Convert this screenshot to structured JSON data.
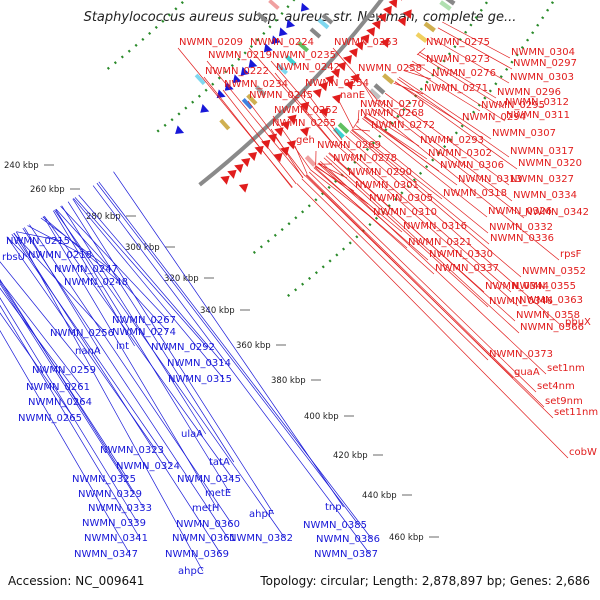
{
  "title": "Staphylococcus aureus subsp. aureus str. Newman, complete ge...",
  "footer": {
    "accession": "Accession: NC_009641",
    "stats": "Topology: circular; Length: 2,878,897 bp; Genes: 2,686"
  },
  "colors": {
    "forward": "#e11d1d",
    "reverse": "#1818d8",
    "backbone": "#8a8a8a",
    "dotted": "#2a8a2a"
  },
  "ticks": [
    "240 kbp",
    "260 kbp",
    "280 kbp",
    "300 kbp",
    "320 kbp",
    "340 kbp",
    "360 kbp",
    "380 kbp",
    "400 kbp",
    "420 kbp",
    "440 kbp",
    "460 kbp"
  ],
  "forward_labels": [
    "NWMN_0209",
    "NWMN_0224",
    "NWMN_0219",
    "NWMN_0235",
    "NWMN_0253",
    "NWMN_0275",
    "NWMN_0304",
    "NWMN_0222",
    "NWMN_0242",
    "NWMN_0258",
    "NWMN_0273",
    "NWMN_0297",
    "NWMN_0234",
    "NWMN_0254",
    "NWMN_0276",
    "NWMN_0303",
    "NWMN_0245",
    "nanE",
    "NWMN_0271",
    "NWMN_0296",
    "NWMN_0270",
    "NWMN_0295",
    "NWMN_0312",
    "NWMN_0252",
    "NWMN_0268",
    "NWMN_0294",
    "NWMN_0311",
    "NWMN_0255",
    "NWMN_0272",
    "NWMN_0307",
    "geh",
    "NWMN_0269",
    "NWMN_0293",
    "NWMN_0302",
    "NWMN_0317",
    "NWMN_0278",
    "NWMN_0306",
    "NWMN_0320",
    "NWMN_0290",
    "NWMN_0313",
    "NWMN_0327",
    "NWMN_0301",
    "NWMN_0318",
    "NWMN_0334",
    "NWMN_0305",
    "NWMN_0326",
    "NWMN_0342",
    "NWMN_0310",
    "NWMN_0332",
    "NWMN_0316",
    "NWMN_0336",
    "NWMN_0321",
    "NWMN_0330",
    "rpsF",
    "NWMN_0337",
    "NWMN_0352",
    "NWMN_0344",
    "NWMN_0355",
    "NWMN_0346",
    "NWMN_0363",
    "NWMN_0358",
    "pbuX",
    "NWMN_0366",
    "NWMN_0373",
    "set1nm",
    "guaA",
    "set4nm",
    "set9nm",
    "set11nm",
    "cobW"
  ],
  "reverse_labels": [
    "NWMN_0215",
    "rbsU",
    "NWMN_0218",
    "NWMN_0247",
    "NWMN_0248",
    "NWMN_0267",
    "NWMN_0256",
    "NWMN_0274",
    "nanA",
    "int",
    "NWMN_0292",
    "NWMN_0259",
    "NWMN_0314",
    "NWMN_0261",
    "NWMN_0315",
    "NWMN_0264",
    "NWMN_0265",
    "ulaA",
    "NWMN_0323",
    "tatA",
    "NWMN_0324",
    "NWMN_0345",
    "NWMN_0325",
    "metE",
    "NWMN_0329",
    "NWMN_0333",
    "metH",
    "ahpF",
    "NWMN_0339",
    "NWMN_0360",
    "tnp",
    "NWMN_0385",
    "NWMN_0341",
    "NWMN_0361",
    "NWMN_0382",
    "NWMN_0386",
    "NWMN_0347",
    "NWMN_0369",
    "NWMN_0387",
    "ahpC"
  ]
}
